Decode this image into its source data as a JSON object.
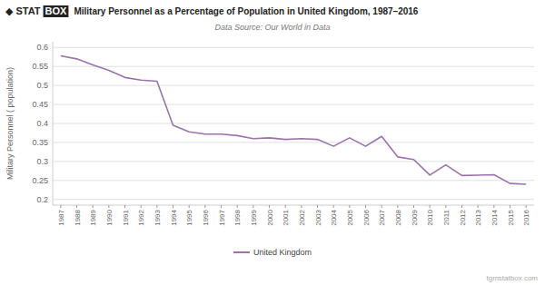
{
  "chart_data": {
    "type": "line",
    "title": "Military Personnel as a Percentage of Population in United Kingdom, 1987–2016",
    "subtitle": "Data Source: Our World in Data",
    "y_label": "Military Personnel ( population)",
    "annotations": [
      "◆",
      "STAT",
      "BOX",
      "tgmstatbox.com"
    ],
    "x": [
      1987,
      1988,
      1989,
      1990,
      1991,
      1992,
      1993,
      1994,
      1995,
      1996,
      1997,
      1998,
      1999,
      2000,
      2001,
      2002,
      2003,
      2004,
      2005,
      2006,
      2007,
      2008,
      2009,
      2010,
      2011,
      2012,
      2013,
      2014,
      2015,
      2016
    ],
    "series": [
      {
        "name": "United Kingdom",
        "color": "#9b72aa",
        "values": [
          0.578,
          0.57,
          0.554,
          0.54,
          0.521,
          0.514,
          0.511,
          0.395,
          0.378,
          0.372,
          0.372,
          0.368,
          0.36,
          0.362,
          0.358,
          0.36,
          0.358,
          0.34,
          0.362,
          0.34,
          0.366,
          0.312,
          0.305,
          0.264,
          0.291,
          0.263,
          0.264,
          0.265,
          0.242,
          0.24
        ]
      }
    ],
    "xlim": [
      1986.5,
      2016.5
    ],
    "xticks": [
      1987,
      1988,
      1989,
      1990,
      1991,
      1992,
      1993,
      1994,
      1995,
      1996,
      1997,
      1998,
      1999,
      2000,
      2001,
      2002,
      2003,
      2004,
      2005,
      2006,
      2007,
      2008,
      2009,
      2010,
      2011,
      2012,
      2013,
      2014,
      2015,
      2016
    ],
    "ylim": [
      0.185,
      0.615
    ],
    "yticks": [
      0.2,
      0.25,
      0.3,
      0.35,
      0.4,
      0.45,
      0.5,
      0.55,
      0.6
    ],
    "grid": true,
    "legend": "bottom"
  }
}
